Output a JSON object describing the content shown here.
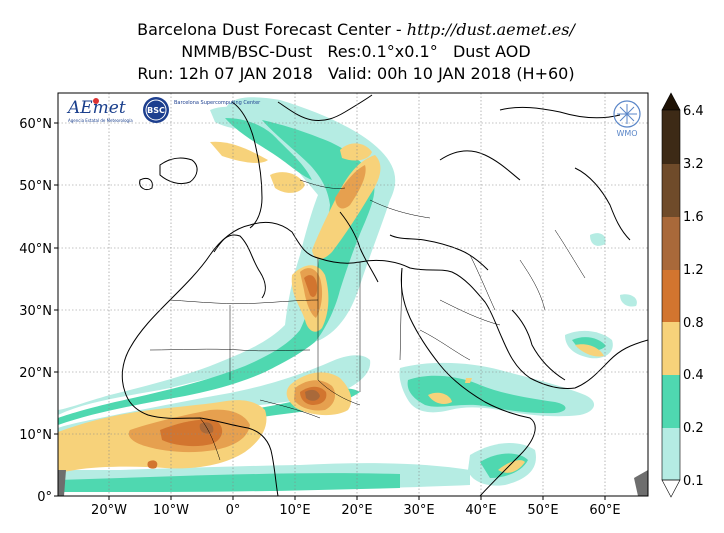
{
  "header": {
    "title_prefix": "Barcelona Dust Forecast Center - ",
    "url": "http://dust.aemet.es/",
    "line2": "NMMB/BSC-Dust   Res:0.1°x0.1°   Dust AOD",
    "line3": "Run: 12h 07 JAN 2018   Valid: 00h 10 JAN 2018 (H+60)"
  },
  "axes": {
    "lat_labels": [
      "60°N",
      "50°N",
      "40°N",
      "30°N",
      "20°N",
      "10°N",
      "0°"
    ],
    "lon_labels": [
      "20°W",
      "10°W",
      "0°",
      "10°E",
      "20°E",
      "30°E",
      "40°E",
      "50°E",
      "60°E"
    ]
  },
  "colorbar": {
    "levels": [
      "0.1",
      "0.2",
      "0.4",
      "0.8",
      "1.2",
      "1.6",
      "3.2",
      "6.4"
    ],
    "colors": [
      "#b5ece3",
      "#4fd8b0",
      "#f7d27a",
      "#e6a04f",
      "#d2752f",
      "#a9693a",
      "#6f4b2a",
      "#3d2a16"
    ]
  },
  "logos": {
    "aemet_label": "AEmet",
    "aemet_sub": "Agencia Estatal de Meteorología",
    "bsc_label": "BSC",
    "bsc_sub": "Barcelona Supercomputing Center",
    "wmo_label": "WMO"
  }
}
